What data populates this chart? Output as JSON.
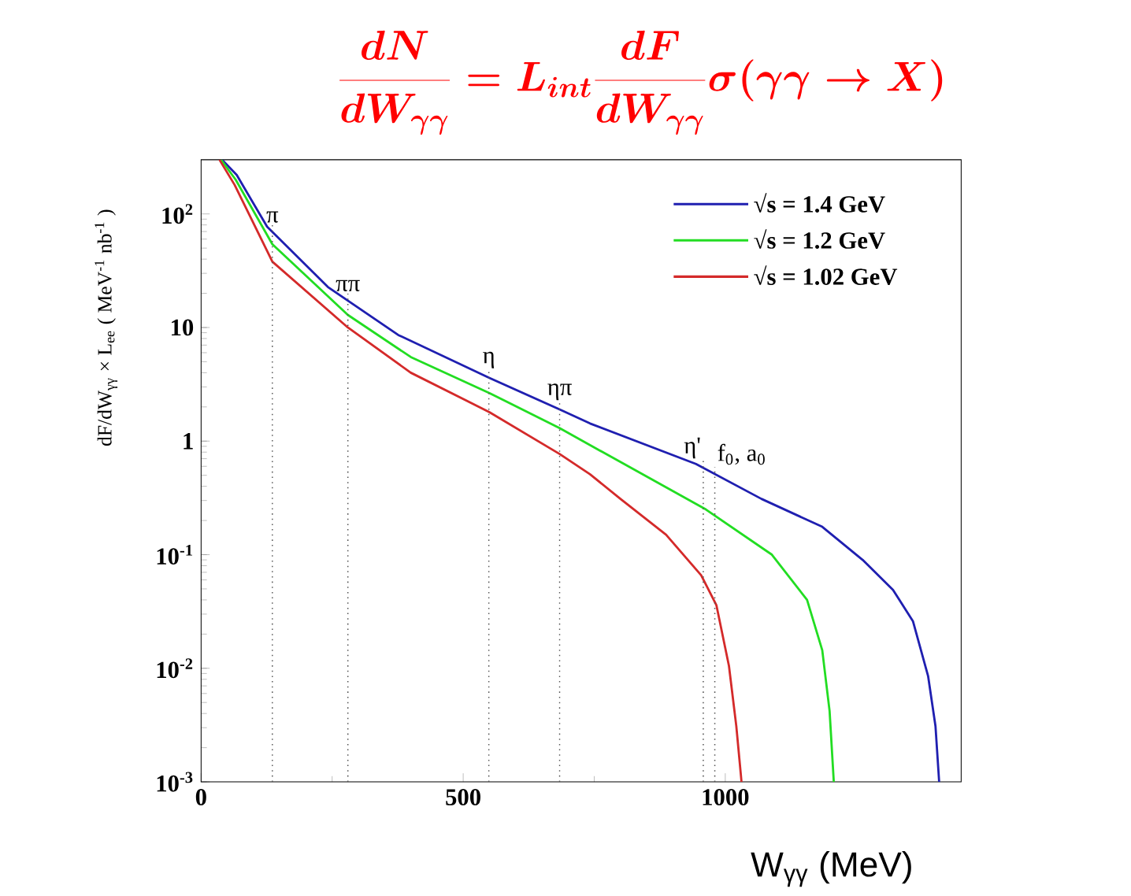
{
  "chart_data": {
    "type": "line",
    "title": "\\frac{dN}{dW_{\\gamma\\gamma}} = L_{int}\\frac{dF}{dW_{\\gamma\\gamma}}\\sigma(\\gamma\\gamma \\to X)",
    "xlabel": "W$_{γγ}$ (MeV)",
    "ylabel": "dF/dW$_{γγ}$ × L$_{ee}$  ( MeV$^{-1}$ nb$^{-1}$ )",
    "log": "y",
    "legend": "top right",
    "marker": "none",
    "xlim": [
      0,
      1450
    ],
    "xticks": [
      0,
      500,
      1000
    ],
    "ylim": [
      0.001,
      300
    ],
    "yticks": [
      {
        "value": 0.001,
        "label": "10$^{-3}$"
      },
      {
        "value": 0.01,
        "label": "10$^{-2}$"
      },
      {
        "value": 0.1,
        "label": "10$^{-1}$"
      },
      1,
      10,
      {
        "value": 100,
        "label": "10$^{2}$"
      }
    ],
    "series": [
      {
        "name": "√s = 1.4 GeV",
        "color": "#1f1fb0",
        "x": [
          40,
          68,
          126,
          242,
          376,
          550,
          684,
          742,
          944,
          1069,
          1185,
          1262,
          1320,
          1358,
          1387,
          1401,
          1408
        ],
        "values": [
          300,
          220,
          77,
          22.7,
          8.6,
          3.6,
          1.9,
          1.43,
          0.63,
          0.31,
          0.176,
          0.09,
          0.049,
          0.026,
          0.0085,
          0.0031,
          0.001
        ]
      },
      {
        "name": "√s = 1.2 GeV",
        "color": "#22dd22",
        "x": [
          38,
          66,
          136,
          280,
          400,
          550,
          684,
          963,
          1089,
          1156,
          1185,
          1199,
          1207
        ],
        "values": [
          300,
          200,
          54,
          12.9,
          5.5,
          2.65,
          1.3,
          0.25,
          0.1,
          0.04,
          0.0144,
          0.0042,
          0.001
        ]
      },
      {
        "name": "√s = 1.02 GeV",
        "color": "#d42a2a",
        "x": [
          35,
          64,
          136,
          280,
          400,
          550,
          684,
          742,
          800,
          887,
          954,
          983,
          1007,
          1021,
          1031
        ],
        "values": [
          300,
          180,
          38,
          10,
          4,
          1.8,
          0.77,
          0.51,
          0.31,
          0.15,
          0.066,
          0.036,
          0.0105,
          0.0031,
          0.001
        ]
      }
    ],
    "ref_lines": [
      {
        "axis": "x",
        "value": 136,
        "label": "π",
        "line_style": "dotted",
        "color": "#555555"
      },
      {
        "axis": "x",
        "value": 280,
        "label": "ππ",
        "line_style": "dotted",
        "color": "#555555"
      },
      {
        "axis": "x",
        "value": 549,
        "label": "η",
        "line_style": "dotted",
        "color": "#555555"
      },
      {
        "axis": "x",
        "value": 684,
        "label": "ηπ",
        "line_style": "dotted",
        "color": "#555555"
      },
      {
        "axis": "x",
        "value": 958,
        "label": "η'",
        "line_style": "dotted",
        "color": "#555555"
      },
      {
        "axis": "x",
        "value": 980,
        "label": "f$_{0}$, a$_{0}$",
        "line_style": "dotted",
        "color": "#555555"
      }
    ]
  }
}
